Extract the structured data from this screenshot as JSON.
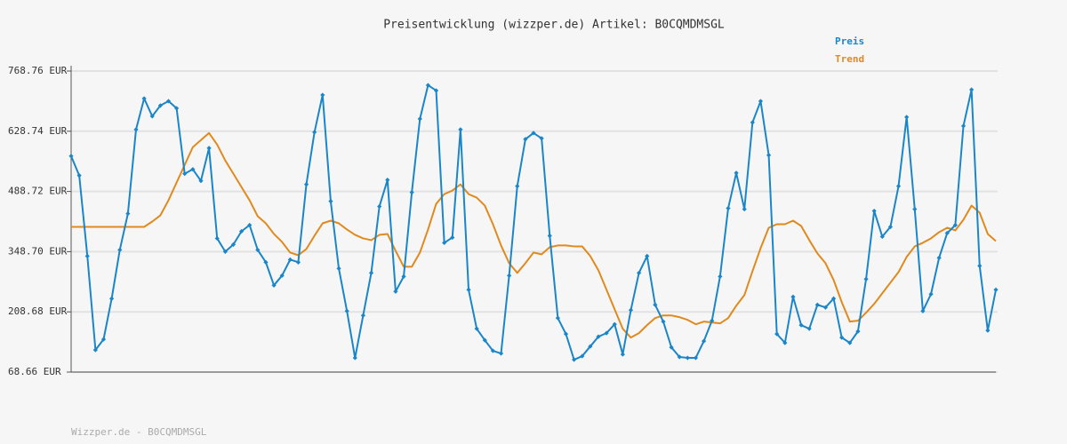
{
  "chart_data": {
    "type": "line",
    "title": "Preisentwicklung (wizzper.de) Artikel: B0CQMDMSGL",
    "footer": "Wizzper.de - B0CQMDMSGL",
    "grid": true,
    "ylim": [
      68.66,
      768.76
    ],
    "yticks": [
      {
        "value": 68.66,
        "label": "68.66 EUR"
      },
      {
        "value": 208.68,
        "label": "208.68 EUR"
      },
      {
        "value": 348.7,
        "label": "348.70 EUR"
      },
      {
        "value": 488.72,
        "label": "488.72 EUR"
      },
      {
        "value": 628.74,
        "label": "628.74 EUR"
      },
      {
        "value": 768.76,
        "label": "768.76 EUR"
      }
    ],
    "series": [
      {
        "name": "Preis",
        "color": "#1a86c8",
        "markers": true,
        "values": [
          571.1,
          525.8,
          338.4,
          120.1,
          144.8,
          239.6,
          352.8,
          437.2,
          632.8,
          704.9,
          663.7,
          688.4,
          698.7,
          682.2,
          529.9,
          540.2,
          513.4,
          589.6,
          379.6,
          348.7,
          365.2,
          396.0,
          410.5,
          352.8,
          324.0,
          270.4,
          293.1,
          330.2,
          324.0,
          505.2,
          626.6,
          713.1,
          466.0,
          309.6,
          210.7,
          101.6,
          200.4,
          299.3,
          453.7,
          515.5,
          256.0,
          291.0,
          486.6,
          657.5,
          735.8,
          723.4,
          369.3,
          381.6,
          632.8,
          260.1,
          169.5,
          142.8,
          118.1,
          111.9,
          293.1,
          501.0,
          610.2,
          624.6,
          612.2,
          385.7,
          194.3,
          157.2,
          97.5,
          105.7,
          128.4,
          151.0,
          159.3,
          179.8,
          109.8,
          212.8,
          299.3,
          338.4,
          225.1,
          186.0,
          126.3,
          103.7,
          101.6,
          101.6,
          140.7,
          188.1,
          291.0,
          449.6,
          531.9,
          447.5,
          649.3,
          698.7,
          573.1,
          157.2,
          136.6,
          243.7,
          177.8,
          169.5,
          225.1,
          219.0,
          239.6,
          148.9,
          136.6,
          163.4,
          284.9,
          443.4,
          383.7,
          406.3,
          501.0,
          661.7,
          447.5,
          210.7,
          249.9,
          334.3,
          391.9,
          410.5,
          641.1,
          725.5,
          315.7,
          165.4,
          260.1
        ]
      },
      {
        "name": "Trend",
        "color": "#e08a1e",
        "markers": false,
        "values": [
          406.3,
          406.3,
          406.3,
          406.3,
          406.3,
          406.3,
          406.3,
          406.3,
          406.3,
          406.3,
          418.7,
          433.1,
          468.1,
          509.3,
          550.5,
          591.7,
          608.1,
          624.6,
          597.8,
          560.8,
          529.9,
          499.0,
          468.1,
          431.0,
          414.6,
          389.9,
          371.3,
          346.6,
          340.5,
          354.9,
          385.7,
          414.6,
          420.8,
          414.6,
          400.2,
          387.8,
          379.6,
          375.5,
          387.8,
          389.9,
          350.7,
          313.7,
          313.7,
          346.6,
          400.2,
          459.9,
          482.5,
          490.8,
          505.2,
          482.5,
          474.3,
          455.8,
          412.5,
          363.1,
          321.9,
          299.3,
          321.9,
          346.6,
          342.5,
          359.0,
          363.1,
          363.1,
          361.0,
          361.0,
          338.4,
          305.4,
          260.1,
          214.8,
          169.5,
          148.9,
          159.3,
          177.8,
          194.3,
          200.4,
          200.4,
          196.3,
          190.1,
          179.8,
          186.0,
          184.0,
          181.9,
          194.3,
          223.1,
          247.8,
          303.4,
          356.9,
          404.3,
          412.5,
          412.5,
          420.8,
          408.4,
          375.5,
          344.6,
          321.9,
          282.8,
          231.3,
          186.0,
          188.1,
          206.6,
          227.2,
          251.9,
          276.6,
          301.3,
          336.3,
          361.0,
          369.3,
          379.6,
          394.0,
          404.3,
          398.1,
          422.8,
          455.8,
          439.3,
          389.9,
          373.4
        ]
      }
    ]
  }
}
